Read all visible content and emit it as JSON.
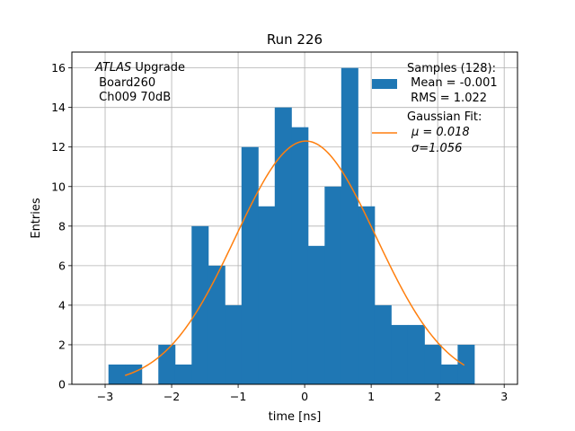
{
  "chart_data": {
    "type": "bar",
    "title": "Run 226",
    "xlabel": "time [ns]",
    "ylabel": "Entries",
    "xlim": [
      -3.5,
      3.2
    ],
    "ylim": [
      0,
      16.8
    ],
    "xticks": [
      -3,
      -2,
      -1,
      0,
      1,
      2,
      3
    ],
    "xtick_labels": [
      "−3",
      "−2",
      "−1",
      "0",
      "1",
      "2",
      "3"
    ],
    "yticks": [
      0,
      2,
      4,
      6,
      8,
      10,
      12,
      14,
      16
    ],
    "yticklabels": [
      "0",
      "2",
      "4",
      "6",
      "8",
      "10",
      "12",
      "14",
      "16"
    ],
    "grid": true,
    "bar_color": "#1f77b4",
    "fit_color": "#ff7f0e",
    "histogram": {
      "bin_edges": [
        -2.95,
        -2.7,
        -2.45,
        -2.2,
        -1.95,
        -1.7,
        -1.45,
        -1.2,
        -0.95,
        -0.7,
        -0.45,
        -0.2,
        0.05,
        0.3,
        0.55,
        0.8,
        1.05,
        1.3,
        1.55,
        1.8,
        2.05,
        2.3,
        2.55,
        2.8
      ],
      "counts": [
        1,
        1,
        0,
        2,
        1,
        8,
        6,
        4,
        12,
        9,
        14,
        13,
        7,
        10,
        16,
        9,
        4,
        3,
        3,
        2,
        1,
        2,
        0
      ]
    },
    "fit": {
      "type": "gaussian",
      "amplitude": 12.3,
      "mu": 0.018,
      "sigma": 1.056,
      "x_range": [
        -2.7,
        2.4
      ]
    },
    "annotation": {
      "italic": "ATLAS",
      "line1_rest": " Upgrade",
      "line2": " Board260",
      "line3": " Ch009 70dB"
    },
    "legend": {
      "placement": "top-right",
      "samples_title": "Samples (128):",
      "samples_mean": " Mean = -0.001",
      "samples_rms": " RMS = 1.022",
      "fit_title": "Gaussian Fit:",
      "fit_mu": "μ = 0.018",
      "fit_sigma": "σ=1.056"
    }
  }
}
